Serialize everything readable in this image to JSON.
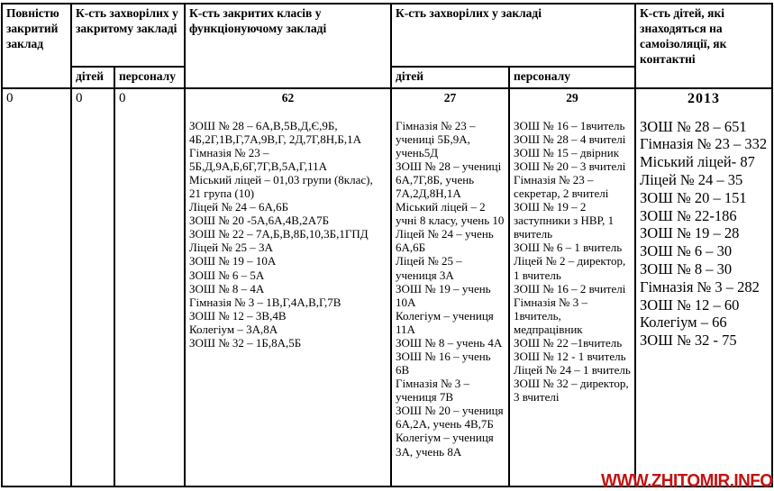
{
  "watermark": {
    "text": "WWW.ZHITOMIR.INFO",
    "color": "#c41212"
  },
  "table": {
    "headers": {
      "fully_closed": "Повністю закритий заклад",
      "sick_in_closed_group": "К-сть захворілих у закритому закладі",
      "sick_in_closed_children_label": "дітей",
      "sick_in_closed_staff_label": "персоналу",
      "closed_classes": "К-сть закритих класів у функціонуючому закладі",
      "sick_in_institution_group": "К-сть захворілих у закладі",
      "sick_children_label": "дітей",
      "sick_staff_label": "персоналу",
      "children_isolation": "К-сть дітей, які знаходяться на самоізоляції, як контактні"
    },
    "row": {
      "fully_closed_value": "0",
      "closed_children_value": "0",
      "closed_staff_value": "0",
      "closed_classes_total": "62",
      "closed_classes_list": [
        "ЗОШ № 28 – 6А,В,5В,Д,Є,9Б, 4Б,2Г,1В,Г,7А,9В,Г, 2Д,7Г,8Н,Б,1А",
        "Гімназія № 23 – 5Б,Д,9А,Б,6Г,7Г,В,5А,Г,11А",
        "Міський ліцей – 01,03 групи (8клас), 21 група (10)",
        "Ліцей № 24 – 6А,6Б",
        "ЗОШ № 20 -5А,6А,4В,2А7Б",
        "ЗОШ № 22 – 7А,Б,В,8Б,10,3Б,1ГПД",
        "Ліцей № 25 – 3А",
        "ЗОШ № 19 – 10А",
        "ЗОШ № 6 – 5А",
        "ЗОШ № 8 – 4А",
        "Гімназія № 3 – 1В,Г,4А,В,Г,7В",
        "ЗОШ № 12 – 3В,4В",
        "Колегіум – 3А,8А",
        "ЗОШ № 32 – 1Б,8А,5Б"
      ],
      "sick_children_total": "27",
      "sick_children_list": [
        "Гімназія № 23 – учениці 5Б,9А, учень5Д",
        "ЗОШ № 28 – учениці 6А,7Г,8Б, учень 7А,2Д,8Н,1А",
        "Міський ліцей – 2 учні 8 класу, учень 10",
        "Ліцей № 24 – учень 6А,6Б",
        "Ліцей № 25 – учениця 3А",
        "ЗОШ № 19 – учень 10А",
        "Колегіум – учениця 11А",
        "ЗОШ № 8 – учень 4А",
        "ЗОШ № 16 – учень 6В",
        "Гімназія № 3 – учениця 7В",
        "ЗОШ № 20 – учениця 6А,2А, учень 4В,7Б",
        "Колегіум – учениця 3А, учень 8А"
      ],
      "sick_staff_total": "29",
      "sick_staff_list": [
        "ЗОШ № 16 – 1вчитель",
        "ЗОШ № 28 – 4 вчителі",
        "ЗОШ № 15 – двірник",
        "ЗОШ № 20 – 3 вчителі",
        "Гімназія № 23 – секретар, 2 вчителі",
        "ЗОШ № 19 – 2 заступники з НВР, 1 вчитель",
        "ЗОШ № 6 – 1 вчитель",
        "Ліцей № 2 – директор, 1 вчитель",
        "ЗОШ № 16 – 2 вчителі",
        "Гімназія № 3 – 1вчитель, медпрацівник",
        "ЗОШ № 22 –1вчитель",
        "ЗОШ № 12 - 1 вчитель",
        "Ліцей № 24 – 1 вчитель",
        "ЗОШ № 32 – директор, 3 вчителі"
      ],
      "isolation_total": "2013",
      "isolation_list": [
        "ЗОШ № 28 – 651",
        "Гімназія № 23 – 332",
        "Міський ліцей- 87",
        "Ліцей № 24 – 35",
        "ЗОШ № 20 – 151",
        "ЗОШ № 22-186",
        "ЗОШ № 19 – 28",
        "ЗОШ № 6 – 30",
        "ЗОШ № 8 – 30",
        "Гімназія № 3 – 282",
        "ЗОШ № 12 – 60",
        "Колегіум – 66",
        "ЗОШ № 32 - 75"
      ]
    }
  }
}
